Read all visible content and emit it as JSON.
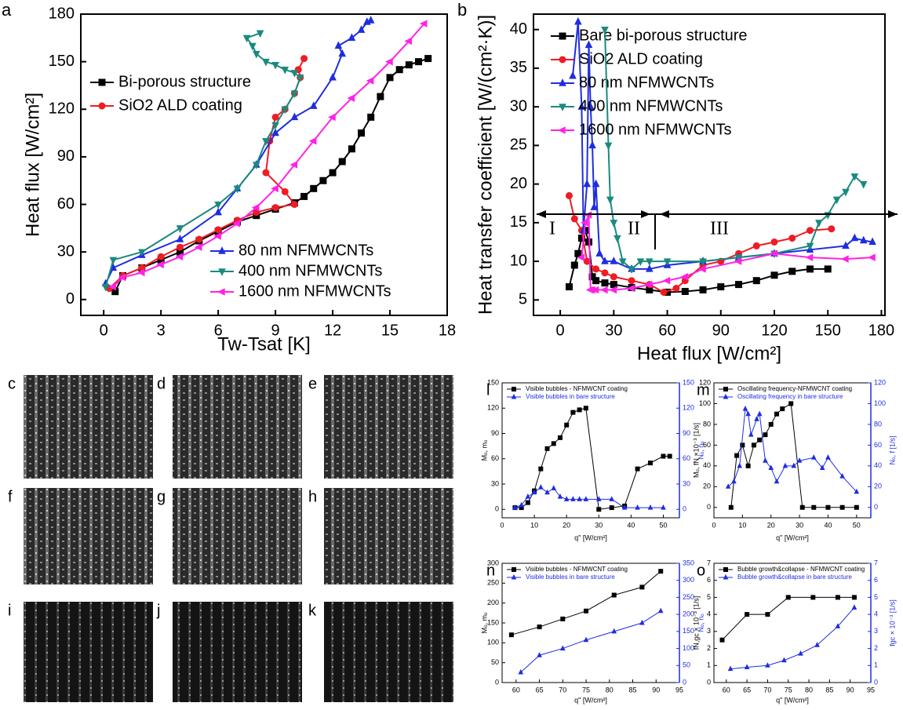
{
  "chart_data": [
    {
      "type": "line",
      "panel": "a",
      "xlabel": "Tw-Tsat [K]",
      "ylabel": "Heat flux [W/cm²]",
      "xlim": [
        -1.2,
        18
      ],
      "xticks": [
        0,
        3,
        6,
        9,
        12,
        15,
        18
      ],
      "ylim": [
        -10,
        180
      ],
      "yticks": [
        0,
        30,
        60,
        90,
        120,
        150,
        180
      ],
      "series": [
        {
          "name": "Bi-porous structure",
          "color": "#000000",
          "marker": "square",
          "x": [
            0.6,
            1,
            2,
            3,
            4,
            5,
            6,
            7,
            8,
            9,
            10,
            10.5,
            11,
            11.5,
            12,
            12.5,
            13,
            13.5,
            14,
            14.5,
            15,
            15.5,
            16,
            16.5,
            17
          ],
          "values": [
            5,
            15,
            20,
            25,
            30,
            37,
            43,
            49,
            53,
            57,
            61,
            65,
            70,
            75,
            80,
            87,
            95,
            105,
            115,
            128,
            140,
            145,
            148,
            150,
            152
          ]
        },
        {
          "name": "SiO2 ALD coating",
          "color": "#ee1c24",
          "marker": "circle",
          "x": [
            0.3,
            1,
            2,
            3,
            4,
            5,
            6,
            7,
            8,
            9,
            10,
            9.5,
            8.5,
            8.7,
            9,
            9.5,
            10,
            10.3,
            10.2,
            10.5
          ],
          "values": [
            7,
            15,
            20,
            27,
            33,
            38,
            44,
            50,
            55,
            58,
            60,
            68,
            80,
            100,
            115,
            120,
            130,
            140,
            145,
            152
          ]
        },
        {
          "name": "80 nm NFMWCNTs",
          "color": "#1f2de0",
          "marker": "triangle-up",
          "x": [
            0.1,
            0.5,
            2,
            4,
            6,
            7,
            8,
            9,
            10,
            11,
            12,
            12.5,
            12.3,
            13,
            13.5,
            13.8,
            14
          ],
          "values": [
            10,
            20,
            28,
            38,
            55,
            70,
            85,
            105,
            115,
            122,
            140,
            155,
            160,
            165,
            170,
            175,
            176
          ]
        },
        {
          "name": "400 nm NFMWCNTs",
          "color": "#1b8a7e",
          "marker": "triangle-down",
          "x": [
            0.1,
            0.5,
            2,
            4,
            6,
            7,
            8,
            8.5,
            9,
            9.5,
            10,
            10.3,
            10,
            9.5,
            9,
            8.5,
            8,
            7.8,
            7.5,
            8.2
          ],
          "values": [
            8,
            25,
            30,
            45,
            60,
            70,
            85,
            100,
            110,
            120,
            130,
            140,
            143,
            145,
            148,
            150,
            155,
            160,
            165,
            168
          ]
        },
        {
          "name": "1600 nm NFMWCNTs",
          "color": "#ff22e6",
          "marker": "triangle-left",
          "x": [
            0.5,
            1,
            2,
            3,
            4,
            5,
            6,
            7,
            8,
            9,
            10,
            11,
            12,
            13,
            14,
            15,
            16,
            16.8
          ],
          "values": [
            8,
            14,
            17,
            22,
            27,
            33,
            40,
            48,
            58,
            70,
            85,
            100,
            115,
            127,
            138,
            150,
            163,
            174
          ]
        }
      ]
    },
    {
      "type": "line",
      "panel": "b",
      "xlabel": "Heat flux [W/cm²]",
      "ylabel": "Heat transfer coefficient [W/(cm²·K)]",
      "xlim": [
        -15,
        182
      ],
      "xticks": [
        0,
        30,
        60,
        90,
        120,
        150,
        180
      ],
      "ylim": [
        3,
        42
      ],
      "yticks": [
        5,
        10,
        15,
        20,
        25,
        30,
        35,
        40
      ],
      "annotations": [
        "I",
        "II",
        "III"
      ],
      "series": [
        {
          "name": "Bare bi-porous structure",
          "color": "#000000",
          "marker": "square",
          "x": [
            5,
            8,
            10,
            12,
            14,
            16,
            18,
            20,
            25,
            30,
            40,
            50,
            60,
            70,
            80,
            90,
            100,
            110,
            120,
            130,
            140,
            150
          ],
          "values": [
            6.7,
            9.5,
            11,
            13,
            14,
            12.5,
            8,
            7.5,
            7.2,
            7,
            6.6,
            6.3,
            6,
            6.1,
            6.3,
            6.7,
            7,
            7.5,
            8.2,
            8.7,
            9,
            9
          ]
        },
        {
          "name": "SiO2 ALD coating",
          "color": "#ee1c24",
          "marker": "circle",
          "x": [
            5,
            8,
            12,
            15,
            20,
            25,
            30,
            40,
            50,
            58,
            65,
            70,
            80,
            90,
            100,
            110,
            120,
            130,
            140,
            152
          ],
          "values": [
            18.5,
            15.5,
            14,
            10,
            9,
            8.5,
            8,
            7.5,
            7,
            6,
            6.5,
            7.5,
            9.5,
            10,
            11,
            12,
            12.5,
            13,
            14,
            14.2
          ]
        },
        {
          "name": "80 nm NFMWCNTs",
          "color": "#1f2de0",
          "marker": "triangle-up",
          "x": [
            7,
            10,
            12,
            13,
            15,
            16,
            17,
            18,
            19,
            20,
            22,
            25,
            30,
            40,
            50,
            60,
            80,
            100,
            120,
            140,
            160,
            165,
            170,
            175
          ],
          "values": [
            34,
            41,
            30,
            14,
            20,
            38,
            30,
            25,
            17,
            20,
            11,
            10,
            10,
            9,
            9,
            9.5,
            10,
            10.5,
            11,
            11.5,
            12,
            13,
            12.7,
            12.5
          ]
        },
        {
          "name": "400 nm NFMWCNTs",
          "color": "#1b8a7e",
          "marker": "triangle-down",
          "x": [
            25,
            27,
            28,
            30,
            32,
            35,
            40,
            45,
            50,
            60,
            80,
            100,
            120,
            140,
            145,
            150,
            155,
            160,
            165,
            170
          ],
          "values": [
            40,
            25,
            18,
            15,
            13,
            10,
            9,
            10,
            10,
            10,
            10,
            10.5,
            11,
            12,
            15,
            16,
            18,
            19,
            21,
            20
          ]
        },
        {
          "name": "1600 nm NFMWCNTs",
          "color": "#ff22e6",
          "marker": "triangle-left",
          "x": [
            12,
            14,
            16,
            17,
            18,
            20,
            25,
            30,
            40,
            50,
            60,
            70,
            80,
            100,
            120,
            140,
            160,
            175
          ],
          "values": [
            10.5,
            15,
            16,
            6.3,
            6.3,
            6.3,
            6.3,
            6.3,
            6.5,
            7,
            7.5,
            8,
            9,
            10,
            11,
            10.5,
            10.3,
            10.5
          ]
        }
      ]
    },
    {
      "type": "line",
      "panel": "l",
      "xlabel": "q\" [W/cm²]",
      "ylabel": "Mₒ, mₒ",
      "y2label": "Nₒ, nₒ",
      "xlim": [
        0,
        55
      ],
      "xticks": [
        0,
        10,
        20,
        30,
        40,
        50
      ],
      "ylim": [
        -10,
        150
      ],
      "yticks": [
        0,
        30,
        60,
        90,
        120,
        150
      ],
      "y2lim": [
        -10,
        150
      ],
      "y2ticks": [
        0,
        30,
        60,
        90,
        120,
        150
      ],
      "series": [
        {
          "name": "Visible bubbles - NFMWCNT coating",
          "color": "#000000",
          "marker": "square",
          "x": [
            4,
            6,
            8,
            10,
            12,
            14,
            16,
            18,
            20,
            22,
            24,
            26,
            30,
            34,
            38,
            42,
            46,
            50,
            52
          ],
          "values": [
            2,
            2,
            8,
            22,
            48,
            72,
            78,
            85,
            100,
            115,
            118,
            120,
            0,
            2,
            4,
            48,
            55,
            63,
            63
          ]
        },
        {
          "name": "Visible bubbles in bare structure",
          "color": "#1f2de0",
          "marker": "triangle-up",
          "axis": "y2",
          "x": [
            4,
            6,
            8,
            10,
            12,
            14,
            16,
            18,
            20,
            22,
            24,
            26,
            30,
            34,
            38,
            42,
            46,
            50
          ],
          "values": [
            2,
            5,
            15,
            20,
            26,
            20,
            25,
            15,
            12,
            12,
            12,
            12,
            12,
            12,
            2,
            2,
            2,
            2
          ]
        }
      ]
    },
    {
      "type": "line",
      "panel": "m",
      "xlabel": "q\" [W/cm²]",
      "ylabel": "Mₒ, fN ×10⁻³ [1/s]",
      "y2label": "Nₒ, f [1/s]",
      "xlim": [
        0,
        55
      ],
      "xticks": [
        0,
        10,
        20,
        30,
        40,
        50
      ],
      "ylim": [
        -10,
        120
      ],
      "yticks": [
        0,
        20,
        40,
        60,
        80,
        100,
        120
      ],
      "y2lim": [
        -10,
        120
      ],
      "y2ticks": [
        0,
        20,
        40,
        60,
        80,
        100,
        120
      ],
      "series": [
        {
          "name": "Oscillating frequency-NFMWCNT coating",
          "color": "#000000",
          "marker": "square",
          "x": [
            6,
            8,
            10,
            12,
            14,
            16,
            18,
            20,
            22,
            24,
            27,
            31,
            35,
            40,
            45,
            50
          ],
          "values": [
            0,
            50,
            60,
            40,
            60,
            65,
            70,
            80,
            90,
            95,
            100,
            0,
            0,
            0,
            0,
            0
          ]
        },
        {
          "name": "Oscillating frequency in bare structure",
          "color": "#1f2de0",
          "marker": "triangle-up",
          "axis": "y2",
          "x": [
            5,
            7,
            9,
            11,
            12,
            13,
            15,
            16,
            18,
            20,
            22,
            25,
            28,
            30,
            35,
            38,
            40,
            45,
            50
          ],
          "values": [
            20,
            25,
            40,
            95,
            90,
            70,
            85,
            90,
            45,
            38,
            25,
            40,
            40,
            45,
            48,
            38,
            48,
            30,
            15
          ]
        }
      ]
    },
    {
      "type": "line",
      "panel": "n",
      "xlabel": "q\" [W/cm²]",
      "ylabel": "Mₒ, mₒ",
      "y2label": "Nₒ, nₒ",
      "xlim": [
        57,
        95
      ],
      "xticks": [
        60,
        65,
        70,
        75,
        80,
        85,
        90,
        95
      ],
      "ylim": [
        0,
        300
      ],
      "yticks": [
        0,
        50,
        100,
        150,
        200,
        250,
        300
      ],
      "y2lim": [
        0,
        350
      ],
      "y2ticks": [
        0,
        50,
        100,
        150,
        200,
        250,
        300,
        350
      ],
      "series": [
        {
          "name": "Visible bubbles - NFMWCNT coating",
          "color": "#000000",
          "marker": "square",
          "x": [
            59,
            65,
            70,
            75,
            81,
            87,
            91
          ],
          "values": [
            120,
            140,
            160,
            180,
            220,
            240,
            280
          ]
        },
        {
          "name": "Visible bubbles in bare structure",
          "color": "#1f2de0",
          "marker": "triangle-up",
          "axis": "y2",
          "x": [
            61,
            65,
            70,
            75,
            81,
            87,
            91
          ],
          "values": [
            30,
            80,
            100,
            125,
            150,
            175,
            210
          ]
        }
      ]
    },
    {
      "type": "line",
      "panel": "o",
      "xlabel": "q\" [W/cm²]",
      "ylabel": "fN,gc × 10⁻³ [1/s]",
      "y2label": "fgc × 10⁻³ [1/s]",
      "xlim": [
        57,
        95
      ],
      "xticks": [
        60,
        65,
        70,
        75,
        80,
        85,
        90,
        95
      ],
      "ylim": [
        0,
        7
      ],
      "yticks": [
        0,
        1,
        2,
        3,
        4,
        5,
        6,
        7
      ],
      "y2lim": [
        0,
        7
      ],
      "y2ticks": [
        0,
        1,
        2,
        3,
        4,
        5,
        6,
        7
      ],
      "series": [
        {
          "name": "Bubble growth&collapse - NFMWCNT coating",
          "color": "#000000",
          "marker": "square",
          "x": [
            59,
            65,
            70,
            75,
            81,
            87,
            91
          ],
          "values": [
            2.5,
            4,
            4,
            5,
            5,
            5,
            5
          ]
        },
        {
          "name": "Bubble growth&collapse in bare structure",
          "color": "#1f2de0",
          "marker": "triangle-up",
          "axis": "y2",
          "x": [
            61,
            65,
            70,
            74,
            78,
            82,
            87,
            91
          ],
          "values": [
            0.8,
            0.9,
            1,
            1.3,
            1.7,
            2.2,
            3.3,
            4.4
          ]
        }
      ]
    }
  ],
  "images": {
    "labels": [
      "c",
      "d",
      "e",
      "f",
      "g",
      "h",
      "i",
      "j",
      "k"
    ]
  }
}
